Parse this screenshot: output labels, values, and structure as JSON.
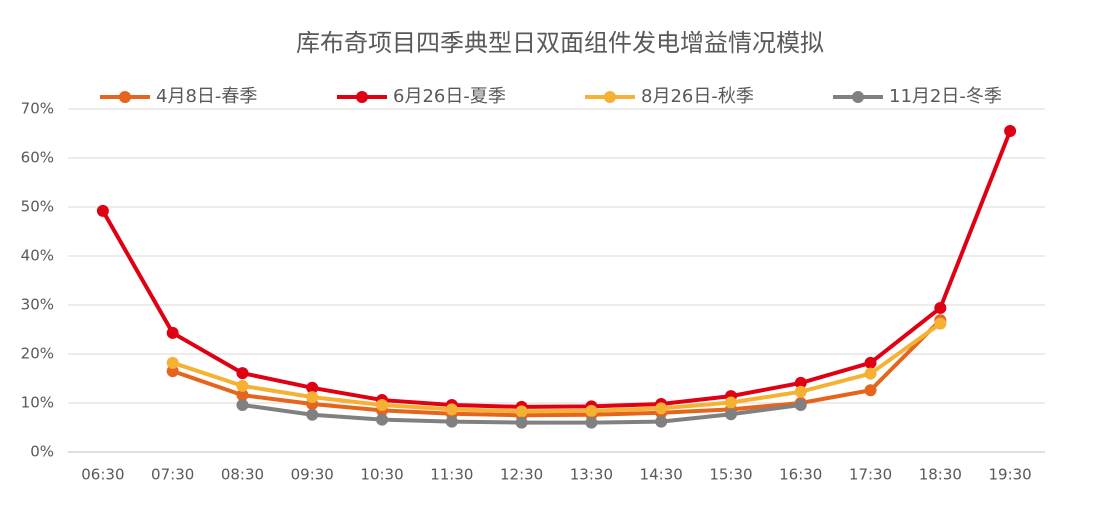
{
  "chart_data": {
    "type": "line",
    "title": "库布奇项目四季典型日双面组件发电增益情况模拟",
    "categories": [
      "06:30",
      "07:30",
      "08:30",
      "09:30",
      "10:30",
      "11:30",
      "12:30",
      "13:30",
      "14:30",
      "15:30",
      "16:30",
      "17:30",
      "18:30",
      "19:30"
    ],
    "series": [
      {
        "name": "4月8日-春季",
        "color": "#e5651e",
        "values": [
          null,
          16.5,
          11.6,
          9.8,
          8.5,
          7.8,
          7.5,
          7.6,
          8.0,
          8.7,
          10.0,
          12.6,
          26.9,
          null
        ]
      },
      {
        "name": "6月26日-夏季",
        "color": "#e00013",
        "values": [
          49.2,
          24.3,
          16.1,
          13.1,
          10.6,
          9.6,
          9.2,
          9.3,
          9.8,
          11.4,
          14.1,
          18.2,
          29.4,
          65.5
        ]
      },
      {
        "name": "8月26日-秋季",
        "color": "#f4b133",
        "values": [
          null,
          18.2,
          13.5,
          11.2,
          9.6,
          8.7,
          8.3,
          8.4,
          8.9,
          10.1,
          12.3,
          16.0,
          26.2,
          null
        ]
      },
      {
        "name": "11月2日-冬季",
        "color": "#808080",
        "values": [
          null,
          null,
          9.6,
          7.6,
          6.6,
          6.2,
          6.0,
          6.0,
          6.2,
          7.7,
          9.6,
          null,
          null,
          null
        ]
      }
    ],
    "ylim": [
      0,
      70
    ],
    "yticks": [
      {
        "value": 0,
        "label": "0%"
      },
      {
        "value": 10,
        "label": "10%"
      },
      {
        "value": 20,
        "label": "20%"
      },
      {
        "value": 30,
        "label": "30%"
      },
      {
        "value": 40,
        "label": "40%"
      },
      {
        "value": 50,
        "label": "50%"
      },
      {
        "value": 60,
        "label": "60%"
      },
      {
        "value": 70,
        "label": "70%"
      }
    ],
    "grid": true,
    "legend": "top"
  }
}
